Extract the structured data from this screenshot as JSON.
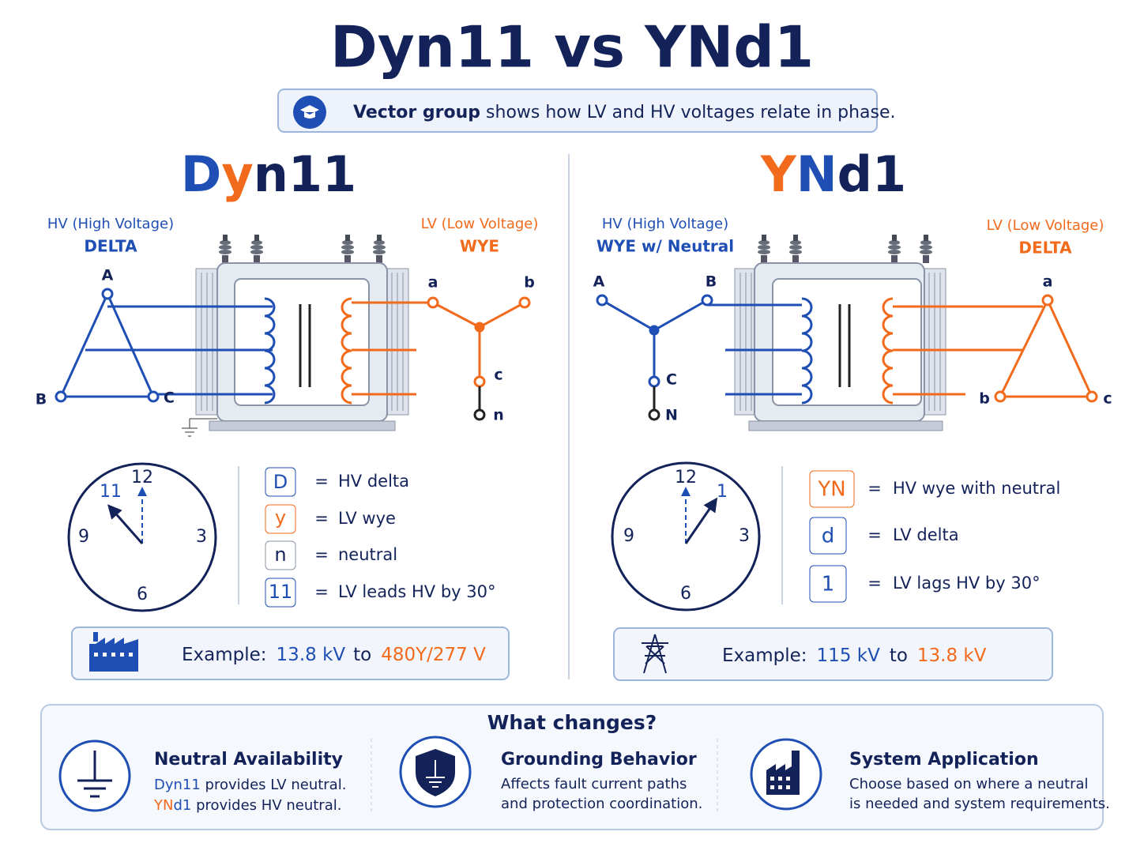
{
  "title": "Dyn11 vs YNd1",
  "banner": {
    "bold": "Vector group",
    "text": " shows how LV and HV voltages relate in phase."
  },
  "panels": [
    {
      "heading": [
        "D",
        "y",
        "n11"
      ],
      "hv": {
        "label": "HV (High Voltage)",
        "type": "DELTA",
        "terminals": [
          "A",
          "B",
          "C"
        ]
      },
      "lv": {
        "label": "LV (Low Voltage)",
        "type": "WYE",
        "terminals": [
          "a",
          "b",
          "c",
          "n"
        ]
      },
      "clock": {
        "numbers": [
          "12",
          "3",
          "6",
          "9"
        ],
        "hand": "11"
      },
      "legend": [
        {
          "code": "D",
          "eq": "=",
          "meaning": "HV delta"
        },
        {
          "code": "y",
          "eq": "=",
          "meaning": "LV wye"
        },
        {
          "code": "n",
          "eq": "=",
          "meaning": "neutral"
        },
        {
          "code": "11",
          "eq": "=",
          "meaning": "LV leads HV by 30°"
        }
      ],
      "example": {
        "label": "Example:",
        "from": "13.8 kV",
        "to": "to",
        "target": "480Y/277 V"
      }
    },
    {
      "heading": [
        "Y",
        "N",
        "d1"
      ],
      "hv": {
        "label": "HV (High Voltage)",
        "type": "WYE w/ Neutral",
        "terminals": [
          "A",
          "B",
          "C",
          "N"
        ]
      },
      "lv": {
        "label": "LV (Low Voltage)",
        "type": "DELTA",
        "terminals": [
          "a",
          "b",
          "c"
        ]
      },
      "clock": {
        "numbers": [
          "12",
          "3",
          "6",
          "9"
        ],
        "hand": "1"
      },
      "legend": [
        {
          "code": "YN",
          "eq": "=",
          "meaning": "HV wye with neutral"
        },
        {
          "code": "d",
          "eq": "=",
          "meaning": "LV delta"
        },
        {
          "code": "1",
          "eq": "=",
          "meaning": "LV lags HV by 30°"
        }
      ],
      "example": {
        "label": "Example:",
        "from": "115 kV",
        "to": "to",
        "target": "13.8 kV"
      }
    }
  ],
  "footer": {
    "title": "What changes?",
    "items": [
      {
        "title": "Neutral Availability",
        "lines": [
          [
            "Dyn11",
            " provides LV neutral."
          ],
          [
            "YN",
            "d1",
            " provides HV neutral."
          ]
        ]
      },
      {
        "title": "Grounding Behavior",
        "lines": [
          [
            "Affects fault current paths"
          ],
          [
            "and protection coordination."
          ]
        ]
      },
      {
        "title": "System Application",
        "lines": [
          [
            "Choose based on where a neutral"
          ],
          [
            "is needed and system requirements."
          ]
        ]
      }
    ]
  }
}
